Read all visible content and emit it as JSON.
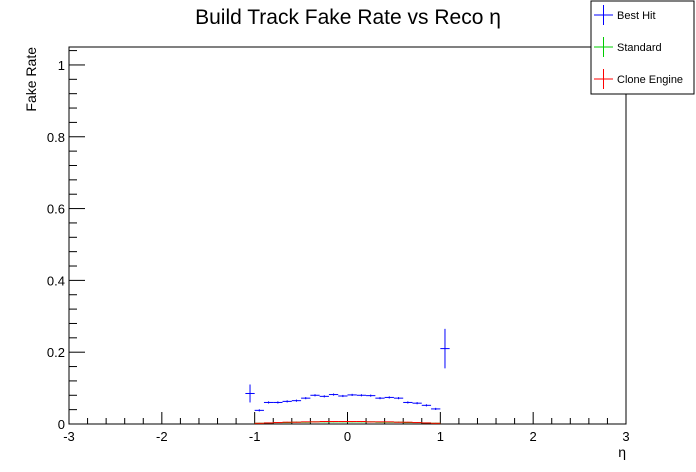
{
  "chart_data": {
    "type": "scatter",
    "title": "Build Track Fake Rate vs Reco η",
    "xlabel": "η",
    "ylabel": "Fake Rate",
    "xlim": [
      -3,
      3
    ],
    "ylim": [
      0,
      1.05
    ],
    "x_ticks": [
      "-3",
      "-2",
      "-1",
      "0",
      "1",
      "2",
      "3"
    ],
    "y_ticks": [
      "0",
      "0.2",
      "0.4",
      "0.6",
      "0.8",
      "1"
    ],
    "bin_width": 0.1,
    "legend_position": "top-right",
    "grid": false,
    "series": [
      {
        "name": "Best Hit",
        "color": "#0000ff",
        "points": [
          {
            "x": -1.05,
            "y": 0.085,
            "err": 0.025
          },
          {
            "x": -0.95,
            "y": 0.038,
            "err": 0.003
          },
          {
            "x": -0.85,
            "y": 0.06,
            "err": 0.003
          },
          {
            "x": -0.75,
            "y": 0.06,
            "err": 0.003
          },
          {
            "x": -0.65,
            "y": 0.063,
            "err": 0.003
          },
          {
            "x": -0.55,
            "y": 0.065,
            "err": 0.003
          },
          {
            "x": -0.45,
            "y": 0.072,
            "err": 0.003
          },
          {
            "x": -0.35,
            "y": 0.08,
            "err": 0.003
          },
          {
            "x": -0.25,
            "y": 0.077,
            "err": 0.003
          },
          {
            "x": -0.15,
            "y": 0.082,
            "err": 0.003
          },
          {
            "x": -0.05,
            "y": 0.078,
            "err": 0.003
          },
          {
            "x": 0.05,
            "y": 0.081,
            "err": 0.003
          },
          {
            "x": 0.15,
            "y": 0.08,
            "err": 0.003
          },
          {
            "x": 0.25,
            "y": 0.079,
            "err": 0.003
          },
          {
            "x": 0.35,
            "y": 0.072,
            "err": 0.003
          },
          {
            "x": 0.45,
            "y": 0.074,
            "err": 0.003
          },
          {
            "x": 0.55,
            "y": 0.072,
            "err": 0.003
          },
          {
            "x": 0.65,
            "y": 0.06,
            "err": 0.003
          },
          {
            "x": 0.75,
            "y": 0.058,
            "err": 0.003
          },
          {
            "x": 0.85,
            "y": 0.052,
            "err": 0.003
          },
          {
            "x": 0.95,
            "y": 0.042,
            "err": 0.003
          },
          {
            "x": 1.05,
            "y": 0.21,
            "err": 0.055
          }
        ]
      },
      {
        "name": "Standard",
        "color": "#00cc00",
        "points": [
          {
            "x": -0.95,
            "y": 0.002,
            "err": 0.001
          },
          {
            "x": -0.85,
            "y": 0.003,
            "err": 0.001
          },
          {
            "x": -0.75,
            "y": 0.004,
            "err": 0.001
          },
          {
            "x": -0.65,
            "y": 0.004,
            "err": 0.001
          },
          {
            "x": -0.55,
            "y": 0.005,
            "err": 0.001
          },
          {
            "x": -0.45,
            "y": 0.005,
            "err": 0.001
          },
          {
            "x": -0.35,
            "y": 0.006,
            "err": 0.001
          },
          {
            "x": -0.25,
            "y": 0.006,
            "err": 0.001
          },
          {
            "x": -0.15,
            "y": 0.006,
            "err": 0.001
          },
          {
            "x": -0.05,
            "y": 0.006,
            "err": 0.001
          },
          {
            "x": 0.05,
            "y": 0.006,
            "err": 0.001
          },
          {
            "x": 0.15,
            "y": 0.006,
            "err": 0.001
          },
          {
            "x": 0.25,
            "y": 0.006,
            "err": 0.001
          },
          {
            "x": 0.35,
            "y": 0.005,
            "err": 0.001
          },
          {
            "x": 0.45,
            "y": 0.005,
            "err": 0.001
          },
          {
            "x": 0.55,
            "y": 0.005,
            "err": 0.001
          },
          {
            "x": 0.65,
            "y": 0.004,
            "err": 0.001
          },
          {
            "x": 0.75,
            "y": 0.004,
            "err": 0.001
          },
          {
            "x": 0.85,
            "y": 0.003,
            "err": 0.001
          },
          {
            "x": 0.95,
            "y": 0.002,
            "err": 0.001
          }
        ]
      },
      {
        "name": "Clone Engine",
        "color": "#ff0000",
        "points": [
          {
            "x": -0.95,
            "y": 0.002,
            "err": 0.001
          },
          {
            "x": -0.85,
            "y": 0.003,
            "err": 0.001
          },
          {
            "x": -0.75,
            "y": 0.004,
            "err": 0.001
          },
          {
            "x": -0.65,
            "y": 0.005,
            "err": 0.001
          },
          {
            "x": -0.55,
            "y": 0.005,
            "err": 0.001
          },
          {
            "x": -0.45,
            "y": 0.006,
            "err": 0.001
          },
          {
            "x": -0.35,
            "y": 0.006,
            "err": 0.001
          },
          {
            "x": -0.25,
            "y": 0.007,
            "err": 0.001
          },
          {
            "x": -0.15,
            "y": 0.007,
            "err": 0.001
          },
          {
            "x": -0.05,
            "y": 0.007,
            "err": 0.001
          },
          {
            "x": 0.05,
            "y": 0.007,
            "err": 0.001
          },
          {
            "x": 0.15,
            "y": 0.007,
            "err": 0.001
          },
          {
            "x": 0.25,
            "y": 0.006,
            "err": 0.001
          },
          {
            "x": 0.35,
            "y": 0.006,
            "err": 0.001
          },
          {
            "x": 0.45,
            "y": 0.006,
            "err": 0.001
          },
          {
            "x": 0.55,
            "y": 0.005,
            "err": 0.001
          },
          {
            "x": 0.65,
            "y": 0.005,
            "err": 0.001
          },
          {
            "x": 0.75,
            "y": 0.004,
            "err": 0.001
          },
          {
            "x": 0.85,
            "y": 0.003,
            "err": 0.001
          },
          {
            "x": 0.95,
            "y": 0.002,
            "err": 0.001
          }
        ]
      }
    ]
  }
}
